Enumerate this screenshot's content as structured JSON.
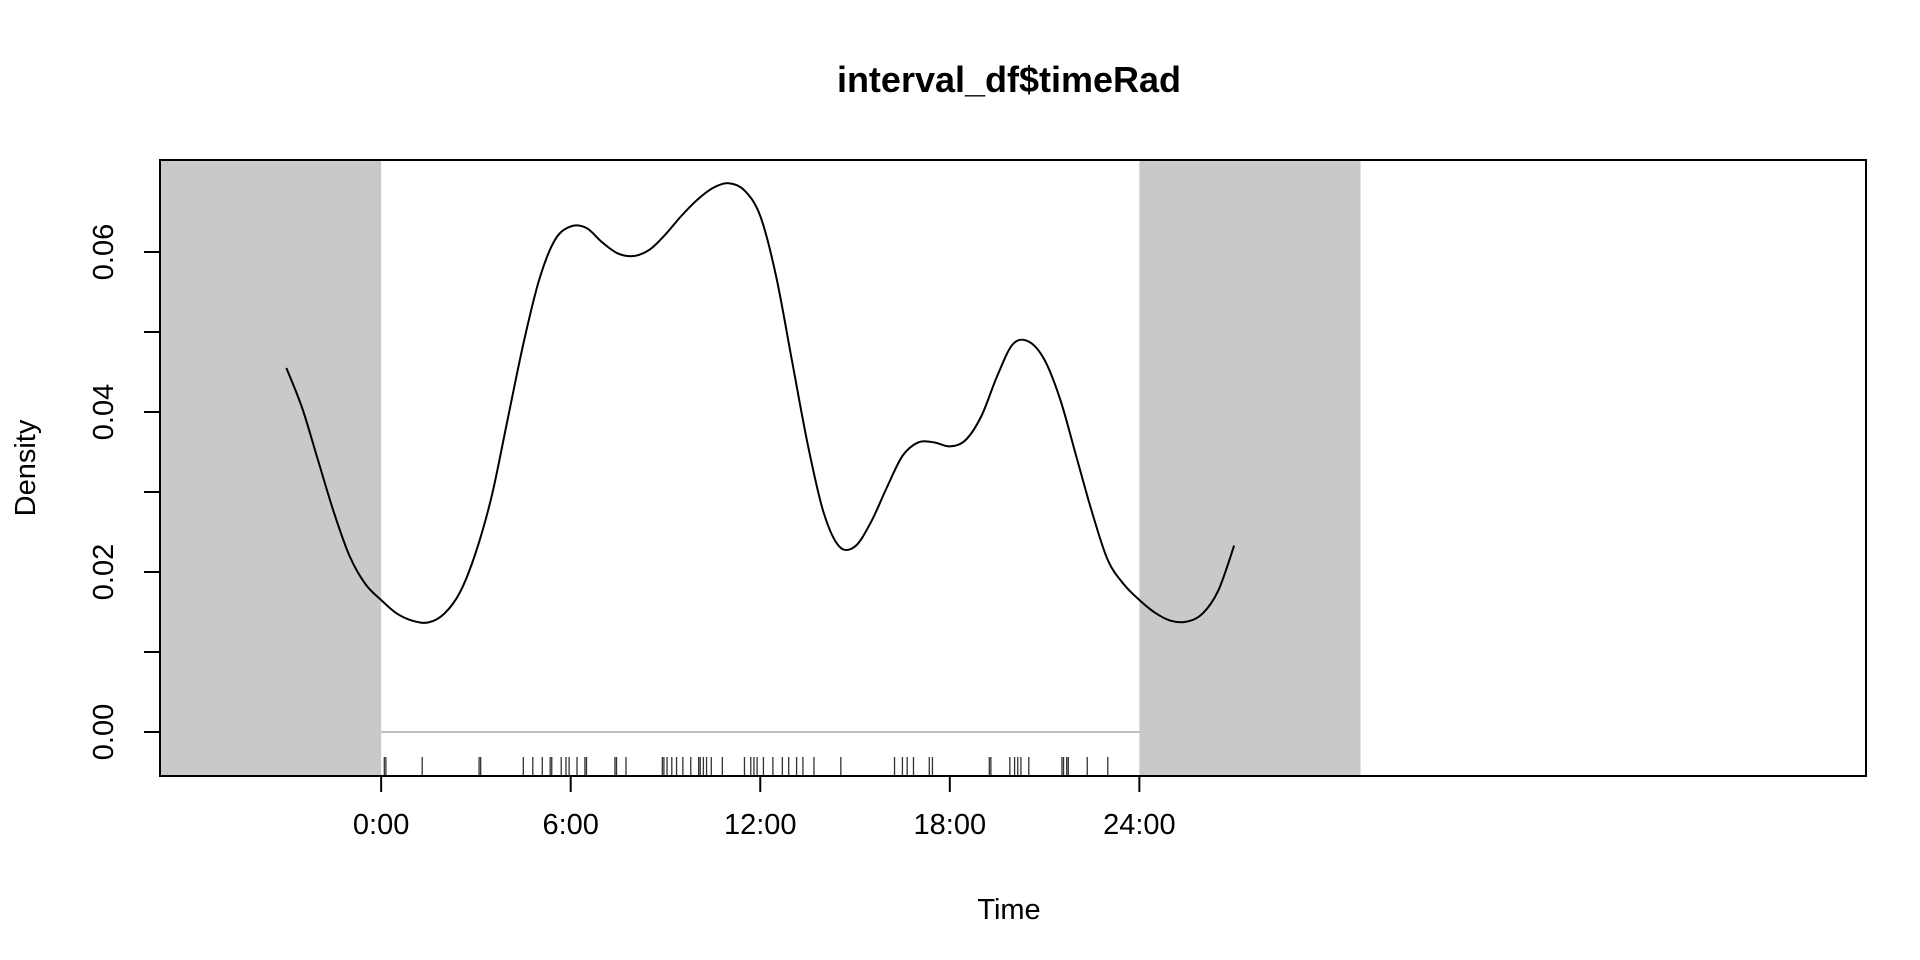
{
  "chart_data": {
    "type": "line",
    "title": "interval_df$timeRad",
    "xlabel": "Time",
    "ylabel": "Density",
    "xlim": [
      -7,
      47
    ],
    "ylim": [
      -0.0055,
      0.0715
    ],
    "x_ticks": [
      {
        "value": 0,
        "label": "0:00"
      },
      {
        "value": 6,
        "label": "6:00"
      },
      {
        "value": 12,
        "label": "12:00"
      },
      {
        "value": 18,
        "label": "18:00"
      },
      {
        "value": 24,
        "label": "24:00"
      }
    ],
    "y_ticks": [
      {
        "value": 0.0,
        "label": "0.00"
      },
      {
        "value": 0.02,
        "label": "0.02"
      },
      {
        "value": 0.04,
        "label": "0.04"
      },
      {
        "value": 0.06,
        "label": "0.06"
      }
    ],
    "y_minor_ticks": [
      0.01,
      0.03,
      0.05
    ],
    "shaded_regions": [
      {
        "from": -7,
        "to": 0,
        "color": "#c9c9c9"
      },
      {
        "from": 24,
        "to": 31,
        "color": "#c9c9c9"
      }
    ],
    "baseline": {
      "from": 0,
      "to": 24,
      "y": 0,
      "color": "#c0c0c0"
    },
    "series": [
      {
        "values_note_omitted": true,
        "x": [
          -3,
          -2.5,
          -2,
          -1.5,
          -1,
          -0.5,
          0,
          0.5,
          1,
          1.5,
          2,
          2.5,
          3,
          3.5,
          4,
          4.5,
          5,
          5.5,
          6,
          6.5,
          7,
          7.5,
          8,
          8.5,
          9,
          9.5,
          10,
          10.5,
          11,
          11.5,
          12,
          12.5,
          13,
          13.5,
          14,
          14.5,
          15,
          15.5,
          16,
          16.5,
          17,
          17.5,
          18,
          18.5,
          19,
          19.5,
          20,
          20.5,
          21,
          21.5,
          22,
          22.5,
          23,
          23.5,
          24,
          24.5,
          25,
          25.5,
          26,
          26.5,
          27
        ],
        "y": [
          0.0455,
          0.0405,
          0.034,
          0.0275,
          0.022,
          0.0185,
          0.0165,
          0.0148,
          0.0139,
          0.0137,
          0.0148,
          0.0175,
          0.0225,
          0.0295,
          0.039,
          0.0485,
          0.0565,
          0.0615,
          0.0632,
          0.063,
          0.0612,
          0.0598,
          0.0595,
          0.0603,
          0.0622,
          0.0645,
          0.0665,
          0.068,
          0.0686,
          0.0677,
          0.0645,
          0.057,
          0.0465,
          0.036,
          0.0275,
          0.0232,
          0.0232,
          0.0262,
          0.0305,
          0.0345,
          0.0362,
          0.0362,
          0.0357,
          0.0365,
          0.0395,
          0.0445,
          0.0485,
          0.0488,
          0.0465,
          0.0415,
          0.0345,
          0.0275,
          0.0215,
          0.0185,
          0.0165,
          0.0149,
          0.0139,
          0.0138,
          0.0148,
          0.0177,
          0.0233
        ]
      }
    ],
    "rug": [
      0.1,
      0.15,
      1.3,
      3.1,
      3.15,
      4.5,
      4.8,
      5.1,
      5.35,
      5.4,
      5.7,
      5.85,
      5.95,
      6.2,
      6.45,
      6.5,
      7.4,
      7.45,
      7.75,
      8.9,
      8.95,
      9.05,
      9.2,
      9.35,
      9.55,
      9.8,
      10.05,
      10.1,
      10.2,
      10.3,
      10.45,
      10.8,
      11.5,
      11.7,
      11.8,
      11.9,
      12.1,
      12.4,
      12.7,
      12.9,
      13.15,
      13.35,
      13.7,
      14.55,
      16.25,
      16.5,
      16.65,
      16.85,
      17.35,
      17.45,
      19.25,
      19.3,
      19.9,
      20.05,
      20.15,
      20.25,
      20.5,
      21.55,
      21.6,
      21.7,
      21.75,
      22.35,
      23.0
    ]
  }
}
